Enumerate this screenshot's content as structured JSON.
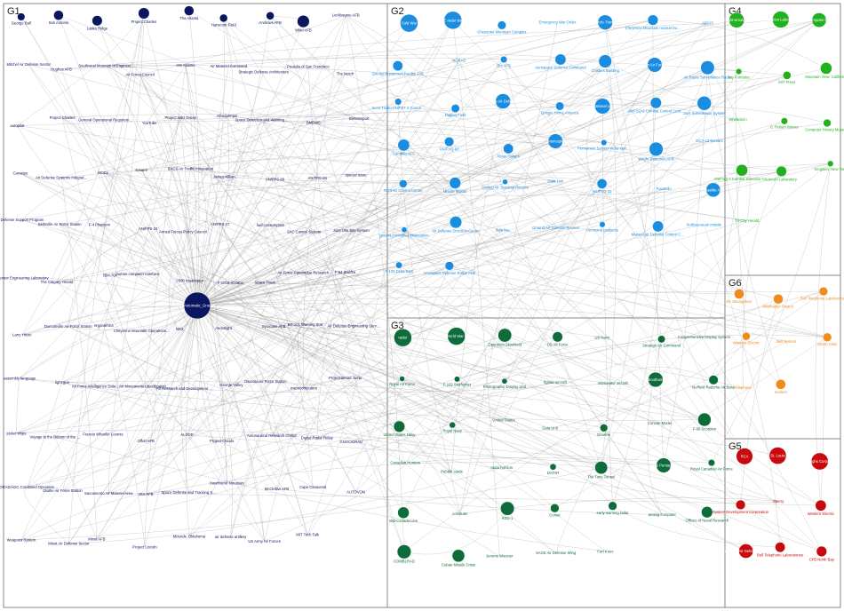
{
  "colors": {
    "G1": "#0b1560",
    "G2": "#1a8de0",
    "G3": "#0e6b3a",
    "G4": "#22b11e",
    "G5": "#c8090e",
    "G6": "#ef8c1d"
  },
  "groups": [
    {
      "id": "G1",
      "label": "G1",
      "labels": [
        "Semi-Automatic_Ground_...",
        "George Ball",
        "San Antonio",
        "Lasko Ridge",
        "Project Charles",
        "Tha Atlanta",
        "Hanscom Field",
        "Andrews AFB",
        "Whirl AFB",
        "Lockbourne AFB",
        "Mitchel Air Defense Sector",
        "Hughes AFB",
        "Southwest Museum of Engineering, Formerly Communications and Computation",
        "Air Force Council",
        "Hts Atlantic",
        "Air Materiel Command",
        "Strategic Defense Architecture",
        "Presidio of San Francisco",
        "The Notch",
        "autopilot",
        "Project Charles",
        "General Operational Requirement",
        "YouTube",
        "Project Wild Geese",
        "Albuquerque",
        "Space Detection and Warning System",
        "BMEWS",
        "Dimemsport",
        "Canaries",
        "Air Defense Systems Integration Division",
        "MCCL",
        "Nmaire",
        "BAGS Air Traffic Integration",
        "James Killian",
        "AN/FPS-20",
        "AN/FPS-26",
        "special issue",
        "Defense Support Program",
        "Beltsville Air Force Station",
        "F-4 Phantom",
        "AN/FPS-24",
        "Armed Forces Policy Council",
        "AN/FPS-27",
        "fuel consumption",
        "SAC Control System",
        "Joint Use Site System",
        "Sensor Engineering Laboratory",
        "The Calgary Herald",
        "IBM 704",
        "human-computer interface",
        "7800 Interceptor",
        "F-101B Voodoo",
        "Space Track",
        "Air Force Cambridge Research Center",
        "F-94 Starfire",
        "Larry Hixon",
        "Duncanville Air Force Station",
        "ergonomics",
        "Cheyenne Mountain Operations Center",
        "NXX",
        "AeroSight",
        "Syracuse AFB",
        "BD-101 Warning Star",
        "Air Defense Engineering Service",
        "assembly language",
        "light gun",
        "Air Force Intelligence Data Handling System",
        "Air Movements Identification Service",
        "Air Research and Development Command",
        "George Valley",
        "Osceola Air Force Station",
        "microcomputers",
        "Project Broad Jump",
        "picket ships",
        "Voyage to the Bottom of the Sea",
        "Francis Wheeler Loomis",
        "Offutt AFB",
        "ALCOP",
        "Project Clouds",
        "Aeronautical Research Center",
        "Digital Radar Relay",
        "GNOC/CRAD",
        "NORAD/ADC Combined Operations Center",
        "Olathe Air Force Station",
        "Sacramento Air Materiel Area",
        "Otis AFB",
        "Space Defense and Tracking System",
        "Hawthorne Mountain",
        "McClellan AFB",
        "Cape Canaveral",
        "AUTOVON",
        "Weapons System",
        "Minot Air Defense Sector",
        "Minot AFB",
        "Project Lincoln",
        "Mounds, Oklahoma",
        "air defense artillery",
        "US Army Air Forces",
        "MIT Tech Talk"
      ]
    },
    {
      "id": "G2",
      "label": "G2",
      "labels": [
        "Cold War",
        "SAGE radar stations",
        "Cheyenne Mountain Complex",
        "Emergency War Order",
        "Arctic Tower",
        "Cheyenne Mountain nuclear bunker",
        "AEGIS",
        "Ground Equipment Facility J-01",
        "NORAD",
        "Ent AFB",
        "Aerospace Defense Command",
        "Childers Building",
        "Peterson Air Force Base",
        "Air Route Surveillance Radar",
        "Semi-Trailer AN/FST-2 Coordinate Data Transmitting Set",
        "Dalgan Field",
        "Los Angeles Air Defense Sector",
        "Google Home America",
        "full operational capability",
        "AN/FSQ-8 Combat Control Central",
        "Joint Surveillance System",
        "Cambria AFS",
        "AN/FYQ-93",
        "Texas Towers",
        "Manned Interceptor Control",
        "Permanent System radar stations",
        "Wright-Patterson AFB",
        "DCA-13 Bamarc",
        "NORAD Control Center",
        "Missile Master",
        "Ground Air Transmit Receive",
        "Data-Link",
        "AN/FSQ-32",
        "Pocatello",
        "Dataelite AFB",
        "ground-controlled interception",
        "Air Defense Direction Center",
        "data line",
        "Ground Air Transmit Receive Station",
        "command guidance",
        "Manual Air Defense Control Center",
        "Surface-to-air missile",
        "F-106 Delta Dart",
        "Aerospace Defense Radar AFB"
      ]
    },
    {
      "id": "G3",
      "label": "G3",
      "labels": [
        "radar",
        "World War II",
        "Operation Skyshield",
        "US Air Force",
        "US Navy",
        "Strategic Air Command",
        "Comprehensive Display System",
        "Royal Air Force",
        "F-102 Starfighter",
        "Photographic Display Unit",
        "fighter aircraft",
        "interceptor aircraft",
        "Southam",
        "Nuffield Radome Air Base",
        "United States Navy",
        "Royal Navy",
        "United States",
        "Data Unit",
        "Dewline",
        "Convair Model",
        "F-89 Scorpion",
        "Canadian Hunters",
        "Pebble cards",
        "radar horizon",
        "DATAR",
        "The Time Tunnel",
        "The Pentagon",
        "Royal Canadian Air Force",
        "Mid-Canada Line",
        "computer",
        "RDS-1",
        "Comet",
        "early-warning radar",
        "analog computer",
        "Offices of Naval Research",
        "COMBLRAD",
        "Cuban Missile Crisis",
        "Jerome Wiesner",
        "SAGE Air Defense Wing",
        "Fort Knox"
      ]
    },
    {
      "id": "G4",
      "label": "G4",
      "labels": [
        "Flight simulator",
        "Radiation Laboratory",
        "computer lab",
        "Jay Forrester",
        "MIT Press",
        "Mountain View, California",
        "Whirlwind I",
        "C. Robert Wieser",
        "Computer History Museum",
        "AN/FSQ-7 Combat Direction Central",
        "Lincoln Laboratory",
        "Kingston, New York",
        "Tri-City Herald"
      ]
    },
    {
      "id": "G5",
      "label": "G5",
      "labels": [
        "RCA",
        "St. Louis",
        "Burroughs Corporation",
        "System Development Corporation",
        "Sperry",
        "Western Electric",
        "Canadian Air Defense Sector",
        "Bell Telephone Laboratories",
        "CFB North Bay"
      ]
    },
    {
      "id": "G6",
      "label": "G6",
      "labels": [
        "Dr. Strangelove",
        "Manhattan Project",
        "Bell Telephone Laboratories",
        "Western Electric",
        "Bell System",
        "Zenith Sites",
        "telephone",
        "modem"
      ]
    }
  ]
}
